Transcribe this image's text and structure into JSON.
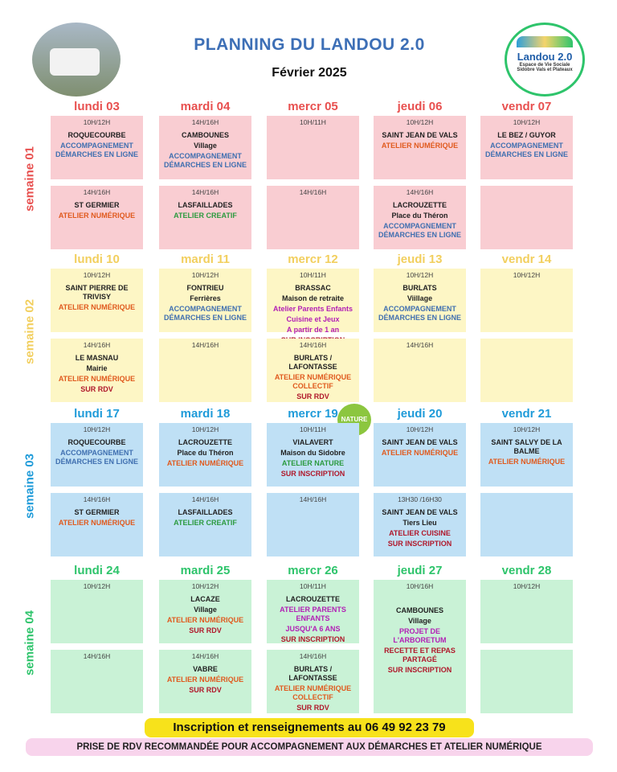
{
  "header": {
    "title": "PLANNING DU LANDOU 2.0",
    "month": "Février 2025",
    "logo": {
      "name": "Landou 2.0",
      "line1": "Espace de Vie Sociale",
      "line2": "Sidobre Vals et Plateaux"
    }
  },
  "weeks": [
    {
      "label": "semaine 01",
      "color": "#e8504f",
      "background": "#f9cdd2",
      "days": [
        {
          "name": "lundi 03",
          "slots": [
            {
              "time": "10H/12H",
              "lines": [
                {
                  "text": "ROQUECOURBE",
                  "color": "#222222"
                },
                {
                  "text": "ACCOMPAGNEMENT DÉMARCHES EN LIGNE",
                  "color": "#3f6fb0"
                }
              ]
            },
            {
              "time": "14H/16H",
              "lines": [
                {
                  "text": "ST GERMIER",
                  "color": "#222222"
                },
                {
                  "text": "ATELIER NUMÉRIQUE",
                  "color": "#e05a1e"
                }
              ]
            }
          ]
        },
        {
          "name": "mardi 04",
          "slots": [
            {
              "time": "14H/16H",
              "lines": [
                {
                  "text": "CAMBOUNES",
                  "color": "#222222"
                },
                {
                  "text": "Village",
                  "color": "#222222"
                },
                {
                  "text": "ACCOMPAGNEMENT DÉMARCHES EN LIGNE",
                  "color": "#3f6fb0"
                }
              ]
            },
            {
              "time": "14H/16H",
              "lines": [
                {
                  "text": "LASFAILLADES",
                  "color": "#222222"
                },
                {
                  "text": "ATELIER CREATIF",
                  "color": "#2b9a3e"
                }
              ]
            }
          ]
        },
        {
          "name": "mercr 05",
          "slots": [
            {
              "time": "10H/11H",
              "lines": []
            },
            {
              "time": "14H/16H",
              "lines": []
            }
          ]
        },
        {
          "name": "jeudi 06",
          "slots": [
            {
              "time": "10H/12H",
              "lines": [
                {
                  "text": "SAINT JEAN DE VALS",
                  "color": "#222222"
                },
                {
                  "text": "ATELIER NUMÉRIQUE",
                  "color": "#e05a1e"
                }
              ]
            },
            {
              "time": "14H/16H",
              "lines": [
                {
                  "text": "LACROUZETTE",
                  "color": "#222222"
                },
                {
                  "text": "Place du Théron",
                  "color": "#222222"
                },
                {
                  "text": "ACCOMPAGNEMENT DÉMARCHES EN LIGNE",
                  "color": "#3f6fb0"
                }
              ]
            }
          ]
        },
        {
          "name": "vendr 07",
          "slots": [
            {
              "time": "10H/12H",
              "lines": [
                {
                  "text": "LE BEZ / GUYOR",
                  "color": "#222222"
                },
                {
                  "text": "ACCOMPAGNEMENT DÉMARCHES EN LIGNE",
                  "color": "#3f6fb0"
                }
              ]
            },
            {
              "lines": []
            }
          ]
        }
      ]
    },
    {
      "label": "semaine 02",
      "color": "#f2cf5e",
      "background": "#fdf6c5",
      "days": [
        {
          "name": "lundi 10",
          "slots": [
            {
              "time": "10H/12H",
              "lines": [
                {
                  "text": "SAINT PIERRE DE TRIVISY",
                  "color": "#222222"
                },
                {
                  "text": "ATELIER NUMÉRIQUE",
                  "color": "#e05a1e"
                }
              ]
            },
            {
              "time": "14H/16H",
              "lines": [
                {
                  "text": "LE MASNAU",
                  "color": "#222222"
                },
                {
                  "text": "Mairie",
                  "color": "#222222"
                },
                {
                  "text": "ATELIER NUMÉRIQUE",
                  "color": "#e05a1e"
                },
                {
                  "text": "SUR RDV",
                  "color": "#b0182b"
                }
              ]
            }
          ]
        },
        {
          "name": "mardi 11",
          "slots": [
            {
              "time": "10H/12H",
              "lines": [
                {
                  "text": "FONTRIEU",
                  "color": "#222222"
                },
                {
                  "text": "Ferrières",
                  "color": "#222222"
                },
                {
                  "text": "ACCOMPAGNEMENT DÉMARCHES EN LIGNE",
                  "color": "#3f6fb0"
                }
              ]
            },
            {
              "time": "14H/16H",
              "lines": []
            }
          ]
        },
        {
          "name": "mercr 12",
          "slots": [
            {
              "time": "10H/11H",
              "lines": [
                {
                  "text": "BRASSAC",
                  "color": "#222222"
                },
                {
                  "text": "Maison de retraite",
                  "color": "#222222"
                },
                {
                  "text": "Atelier Parents Enfants",
                  "color": "#b21fb5"
                },
                {
                  "text": "Cuisine et Jeux",
                  "color": "#b21fb5"
                },
                {
                  "text": "A partir de 1 an",
                  "color": "#b21fb5"
                },
                {
                  "text": "SUR INSCRIPTION",
                  "color": "#b0182b"
                }
              ]
            },
            {
              "time": "14H/16H",
              "lines": [
                {
                  "text": "BURLATS / LAFONTASSE",
                  "color": "#222222"
                },
                {
                  "text": "ATELIER NUMÉRIQUE COLLECTIF",
                  "color": "#e05a1e"
                },
                {
                  "text": "SUR RDV",
                  "color": "#b0182b"
                }
              ]
            }
          ]
        },
        {
          "name": "jeudi 13",
          "slots": [
            {
              "time": "10H/12H",
              "lines": [
                {
                  "text": "BURLATS",
                  "color": "#222222"
                },
                {
                  "text": "Viillage",
                  "color": "#222222"
                },
                {
                  "text": "ACCOMPAGNEMENT DÉMARCHES EN LIGNE",
                  "color": "#3f6fb0"
                }
              ]
            },
            {
              "time": "14H/16H",
              "lines": []
            }
          ]
        },
        {
          "name": "vendr 14",
          "slots": [
            {
              "time": "10H/12H",
              "lines": []
            },
            {
              "lines": []
            }
          ]
        }
      ]
    },
    {
      "label": "semaine 03",
      "color": "#1f9bd9",
      "background": "#bfe0f5",
      "days": [
        {
          "name": "lundi 17",
          "slots": [
            {
              "time": "10H/12H",
              "lines": [
                {
                  "text": "ROQUECOURBE",
                  "color": "#222222"
                },
                {
                  "text": "ACCOMPAGNEMENT DÉMARCHES EN LIGNE",
                  "color": "#3f6fb0"
                }
              ]
            },
            {
              "time": "14H/16H",
              "lines": [
                {
                  "text": "ST GERMIER",
                  "color": "#222222"
                },
                {
                  "text": "ATELIER NUMÉRIQUE",
                  "color": "#e05a1e"
                }
              ]
            }
          ]
        },
        {
          "name": "mardi 18",
          "slots": [
            {
              "time": "10H/12H",
              "lines": [
                {
                  "text": "LACROUZETTE",
                  "color": "#222222"
                },
                {
                  "text": "Place du Théron",
                  "color": "#222222"
                },
                {
                  "text": "ATELIER NUMÉRIQUE",
                  "color": "#e05a1e"
                }
              ]
            },
            {
              "time": "14H/16H",
              "lines": [
                {
                  "text": "LASFAILLADES",
                  "color": "#222222"
                },
                {
                  "text": "ATELIER CREATIF",
                  "color": "#2b9a3e"
                }
              ]
            }
          ]
        },
        {
          "name": "mercr 19",
          "badge": "NATURE",
          "slots": [
            {
              "time": "10H/11H",
              "lines": [
                {
                  "text": "VIALAVERT",
                  "color": "#222222"
                },
                {
                  "text": "Maison du Sidobre",
                  "color": "#222222"
                },
                {
                  "text": "ATELIER NATURE",
                  "color": "#2b9a3e"
                },
                {
                  "text": "SUR INSCRIPTION",
                  "color": "#b0182b"
                }
              ]
            },
            {
              "time": "14H/16H",
              "lines": []
            }
          ]
        },
        {
          "name": "jeudi 20",
          "slots": [
            {
              "time": "10H/12H",
              "lines": [
                {
                  "text": "SAINT JEAN DE VALS",
                  "color": "#222222"
                },
                {
                  "text": "ATELIER NUMÉRIQUE",
                  "color": "#e05a1e"
                }
              ]
            },
            {
              "time": "13H30 /16H30",
              "lines": [
                {
                  "text": "SAINT JEAN DE VALS",
                  "color": "#222222"
                },
                {
                  "text": "Tiers Lieu",
                  "color": "#222222"
                },
                {
                  "text": "ATELIER CUISINE",
                  "color": "#b0182b"
                },
                {
                  "text": "SUR INSCRIPTION",
                  "color": "#b0182b"
                }
              ]
            }
          ]
        },
        {
          "name": "vendr 21",
          "slots": [
            {
              "time": "10H/12H",
              "lines": [
                {
                  "text": "SAINT SALVY DE LA BALME",
                  "color": "#222222"
                },
                {
                  "text": "ATELIER NUMÉRIQUE",
                  "color": "#e05a1e"
                }
              ]
            },
            {
              "lines": []
            }
          ]
        }
      ]
    },
    {
      "label": "semaine 04",
      "color": "#2ec46b",
      "background": "#c9f2d6",
      "days": [
        {
          "name": "lundi 24",
          "slots": [
            {
              "time": "10H/12H",
              "lines": []
            },
            {
              "time": "14H/16H",
              "lines": []
            }
          ]
        },
        {
          "name": "mardi 25",
          "slots": [
            {
              "time": "10H/12H",
              "lines": [
                {
                  "text": "LACAZE",
                  "color": "#222222"
                },
                {
                  "text": "Village",
                  "color": "#222222"
                },
                {
                  "text": "ATELIER NUMÉRIQUE",
                  "color": "#e05a1e"
                },
                {
                  "text": "SUR RDV",
                  "color": "#b0182b"
                }
              ]
            },
            {
              "time": "14H/16H",
              "lines": [
                {
                  "text": "VABRE",
                  "color": "#222222"
                },
                {
                  "text": "ATELIER NUMÉRIQUE",
                  "color": "#e05a1e"
                },
                {
                  "text": "SUR RDV",
                  "color": "#b0182b"
                }
              ]
            }
          ]
        },
        {
          "name": "mercr 26",
          "slots": [
            {
              "time": "10H/11H",
              "lines": [
                {
                  "text": "LACROUZETTE",
                  "color": "#222222"
                },
                {
                  "text": "ATELIER PARENTS ENFANTS",
                  "color": "#b21fb5"
                },
                {
                  "text": "JUSQU'A 6 ANS",
                  "color": "#b21fb5"
                },
                {
                  "text": "SUR INSCRIPTION",
                  "color": "#b0182b"
                }
              ]
            },
            {
              "time": "14H/16H",
              "lines": [
                {
                  "text": "BURLATS / LAFONTASSE",
                  "color": "#222222"
                },
                {
                  "text": "ATELIER NUMÉRIQUE COLLECTIF",
                  "color": "#e05a1e"
                },
                {
                  "text": "SUR RDV",
                  "color": "#b0182b"
                }
              ]
            }
          ]
        },
        {
          "name": "jeudi 27",
          "slots": [
            {
              "time": "10H/16H",
              "lines": [
                {
                  "text": "CAMBOUNES",
                  "color": "#222222"
                },
                {
                  "text": "Village",
                  "color": "#222222"
                },
                {
                  "text": "PROJET DE L'ARBORETUM",
                  "color": "#b21fb5"
                },
                {
                  "text": "RECETTE ET REPAS PARTAGÉ",
                  "color": "#b0182b"
                },
                {
                  "text": "SUR INSCRIPTION",
                  "color": "#b0182b"
                }
              ]
            }
          ]
        },
        {
          "name": "vendr 28",
          "slots": [
            {
              "time": "10H/12H",
              "lines": []
            },
            {
              "lines": []
            }
          ]
        }
      ]
    }
  ],
  "footer": {
    "contact": "Inscription et renseignements au 06 49 92 23 79",
    "note": "PRISE DE RDV RECOMMANDÉE POUR ACCOMPAGNEMENT AUX DÉMARCHES ET ATELIER NUMÉRIQUE"
  }
}
